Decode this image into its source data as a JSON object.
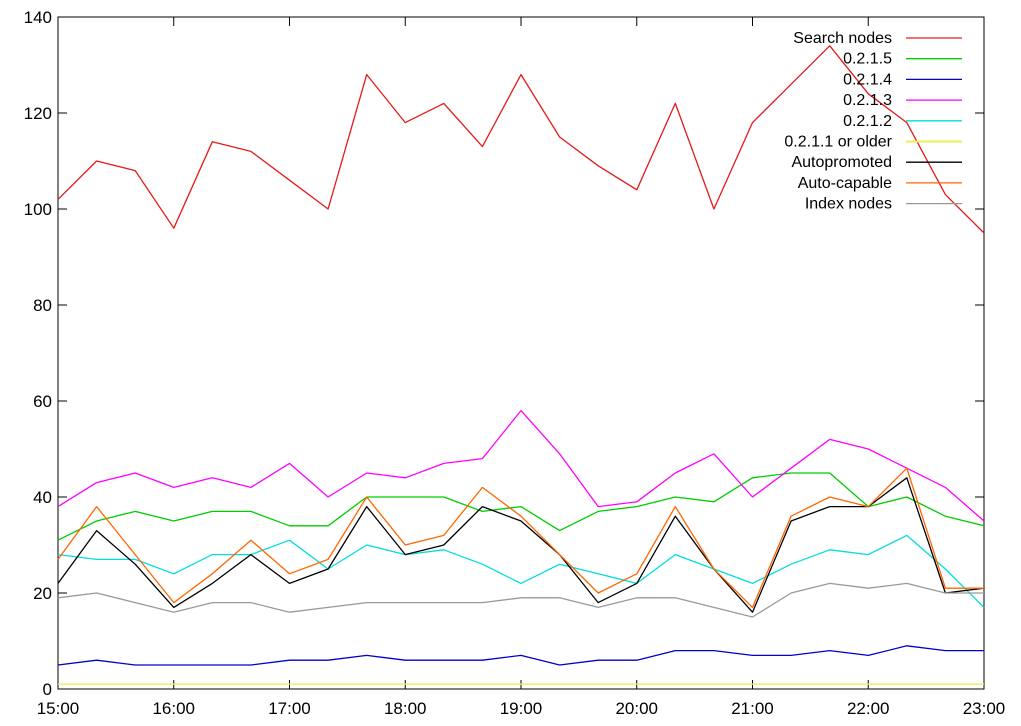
{
  "chart_data": {
    "type": "line",
    "title": "",
    "xlabel": "",
    "ylabel": "",
    "xlim": [
      "15:00",
      "23:00"
    ],
    "ylim": [
      0,
      140
    ],
    "x_ticks": [
      "15:00",
      "16:00",
      "17:00",
      "18:00",
      "19:00",
      "20:00",
      "21:00",
      "22:00",
      "23:00"
    ],
    "y_ticks": [
      0,
      20,
      40,
      60,
      80,
      100,
      120,
      140
    ],
    "grid": false,
    "legend_position": "top-right",
    "x": [
      "15:00",
      "15:20",
      "15:40",
      "16:00",
      "16:20",
      "16:40",
      "17:00",
      "17:20",
      "17:40",
      "18:00",
      "18:20",
      "18:40",
      "19:00",
      "19:20",
      "19:40",
      "20:00",
      "20:20",
      "20:40",
      "21:00",
      "21:20",
      "21:40",
      "22:00",
      "22:20",
      "22:40",
      "23:00"
    ],
    "series": [
      {
        "name": "Search nodes",
        "color": "#e41a1a",
        "values": [
          102,
          110,
          108,
          96,
          114,
          112,
          106,
          100,
          128,
          118,
          122,
          113,
          128,
          115,
          109,
          104,
          122,
          100,
          118,
          126,
          134,
          124,
          118,
          103,
          95
        ]
      },
      {
        "name": "0.2.1.5",
        "color": "#00cc00",
        "values": [
          31,
          35,
          37,
          35,
          37,
          37,
          34,
          34,
          40,
          40,
          40,
          37,
          38,
          33,
          37,
          38,
          40,
          39,
          44,
          45,
          45,
          38,
          40,
          36,
          34
        ]
      },
      {
        "name": "0.2.1.4",
        "color": "#0000cc",
        "values": [
          5,
          6,
          5,
          5,
          5,
          5,
          6,
          6,
          7,
          6,
          6,
          6,
          7,
          5,
          6,
          6,
          8,
          8,
          7,
          7,
          8,
          7,
          9,
          8,
          8
        ]
      },
      {
        "name": "0.2.1.3",
        "color": "#ff00ff",
        "values": [
          38,
          43,
          45,
          42,
          44,
          42,
          47,
          40,
          45,
          44,
          47,
          48,
          58,
          49,
          38,
          39,
          45,
          49,
          40,
          46,
          52,
          50,
          46,
          42,
          35
        ]
      },
      {
        "name": "0.2.1.2",
        "color": "#00dddd",
        "values": [
          28,
          27,
          27,
          24,
          28,
          28,
          31,
          25,
          30,
          28,
          29,
          26,
          22,
          26,
          24,
          22,
          28,
          25,
          22,
          26,
          29,
          28,
          32,
          25,
          17
        ]
      },
      {
        "name": "0.2.1.1 or older",
        "color": "#eeee55",
        "values": [
          1,
          1,
          1,
          1,
          1,
          1,
          1,
          1,
          1,
          1,
          1,
          1,
          1,
          1,
          1,
          1,
          1,
          1,
          1,
          1,
          1,
          1,
          1,
          1,
          1
        ]
      },
      {
        "name": "Autopromoted",
        "color": "#000000",
        "values": [
          22,
          33,
          26,
          17,
          22,
          28,
          22,
          25,
          38,
          28,
          30,
          38,
          35,
          28,
          18,
          22,
          36,
          25,
          16,
          35,
          38,
          38,
          44,
          20,
          21
        ]
      },
      {
        "name": "Auto-capable",
        "color": "#ff6600",
        "values": [
          27,
          38,
          28,
          18,
          24,
          31,
          24,
          27,
          40,
          30,
          32,
          42,
          36,
          28,
          20,
          24,
          38,
          25,
          17,
          36,
          40,
          38,
          46,
          21,
          21
        ]
      },
      {
        "name": "Index nodes",
        "color": "#999999",
        "values": [
          19,
          20,
          18,
          16,
          18,
          18,
          16,
          17,
          18,
          18,
          18,
          18,
          19,
          19,
          17,
          19,
          19,
          17,
          15,
          20,
          22,
          21,
          22,
          20,
          20
        ]
      }
    ]
  }
}
